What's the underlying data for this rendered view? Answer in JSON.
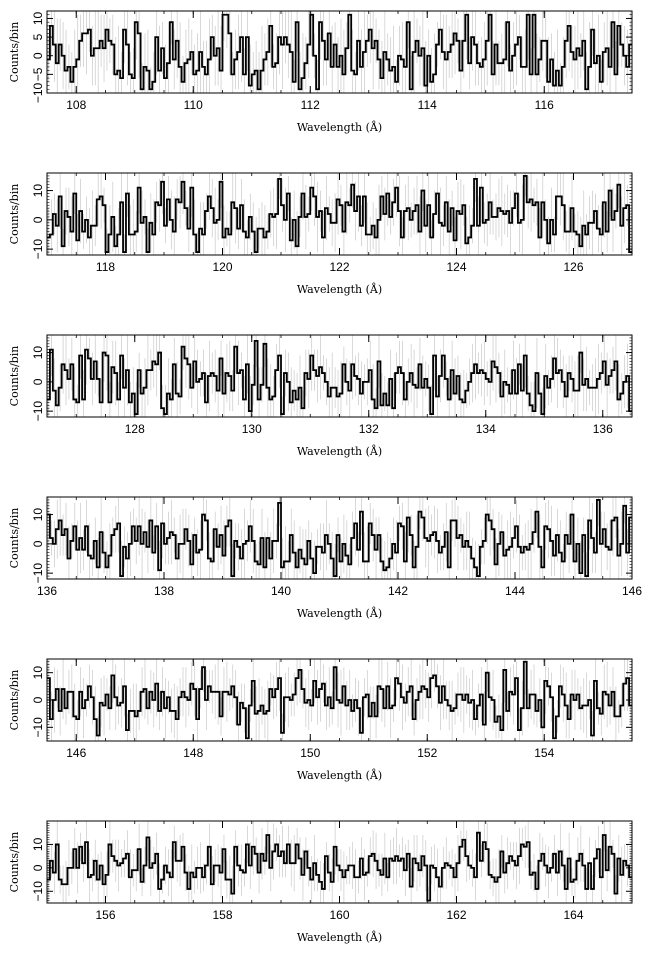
{
  "chart_data": [
    {
      "type": "line",
      "step": true,
      "error_bars": true,
      "xlabel": "Wavelength (Å)",
      "ylabel": "Counts/bin",
      "xlim": [
        107.5,
        117.5
      ],
      "ylim": [
        -10,
        12
      ],
      "xticks": [
        108,
        110,
        112,
        114,
        116
      ],
      "yticks": [
        -10,
        -5,
        0,
        5,
        10
      ],
      "ytick_labels": [
        "−10",
        "−5",
        "0",
        "5",
        "10"
      ],
      "seed": 11,
      "series": [
        {
          "values": []
        }
      ]
    },
    {
      "type": "line",
      "step": true,
      "error_bars": true,
      "xlabel": "Wavelength (Å)",
      "ylabel": "Counts/bin",
      "xlim": [
        117,
        127
      ],
      "ylim": [
        -12,
        16
      ],
      "xticks": [
        118,
        120,
        122,
        124,
        126
      ],
      "yticks": [
        -10,
        0,
        10
      ],
      "ytick_labels": [
        "−10",
        "0",
        "10"
      ],
      "seed": 23,
      "series": [
        {
          "values": []
        }
      ]
    },
    {
      "type": "line",
      "step": true,
      "error_bars": true,
      "xlabel": "Wavelength (Å)",
      "ylabel": "Counts/bin",
      "xlim": [
        126.5,
        136.5
      ],
      "ylim": [
        -12,
        16
      ],
      "xticks": [
        128,
        130,
        132,
        134,
        136
      ],
      "yticks": [
        -10,
        0,
        10
      ],
      "ytick_labels": [
        "−10",
        "0",
        "10"
      ],
      "seed": 37,
      "series": [
        {
          "values": []
        }
      ]
    },
    {
      "type": "line",
      "step": true,
      "error_bars": true,
      "xlabel": "Wavelength (Å)",
      "ylabel": "Counts/bin",
      "xlim": [
        136,
        146
      ],
      "ylim": [
        -12,
        16
      ],
      "xticks": [
        136,
        138,
        140,
        142,
        144,
        146
      ],
      "yticks": [
        -10,
        0,
        10
      ],
      "ytick_labels": [
        "−10",
        "0",
        "10"
      ],
      "seed": 41,
      "series": [
        {
          "values": []
        }
      ]
    },
    {
      "type": "line",
      "step": true,
      "error_bars": true,
      "xlabel": "Wavelength (Å)",
      "ylabel": "Counts/bin",
      "xlim": [
        145.5,
        155.5
      ],
      "ylim": [
        -15,
        15
      ],
      "xticks": [
        146,
        148,
        150,
        152,
        154
      ],
      "yticks": [
        -10,
        0,
        10
      ],
      "ytick_labels": [
        "−10",
        "0",
        "10"
      ],
      "seed": 53,
      "series": [
        {
          "values": []
        }
      ]
    },
    {
      "type": "line",
      "step": true,
      "error_bars": true,
      "xlabel": "Wavelength (Å)",
      "ylabel": "Counts/bin",
      "xlim": [
        155,
        165
      ],
      "ylim": [
        -15,
        20
      ],
      "xticks": [
        156,
        158,
        160,
        162,
        164
      ],
      "yticks": [
        -10,
        0,
        10
      ],
      "ytick_labels": [
        "−10",
        "0",
        "10"
      ],
      "seed": 67,
      "series": [
        {
          "values": []
        }
      ]
    }
  ],
  "colors": {
    "line": "#000000",
    "error_bar": "#c8c8c8",
    "frame": "#000000"
  }
}
